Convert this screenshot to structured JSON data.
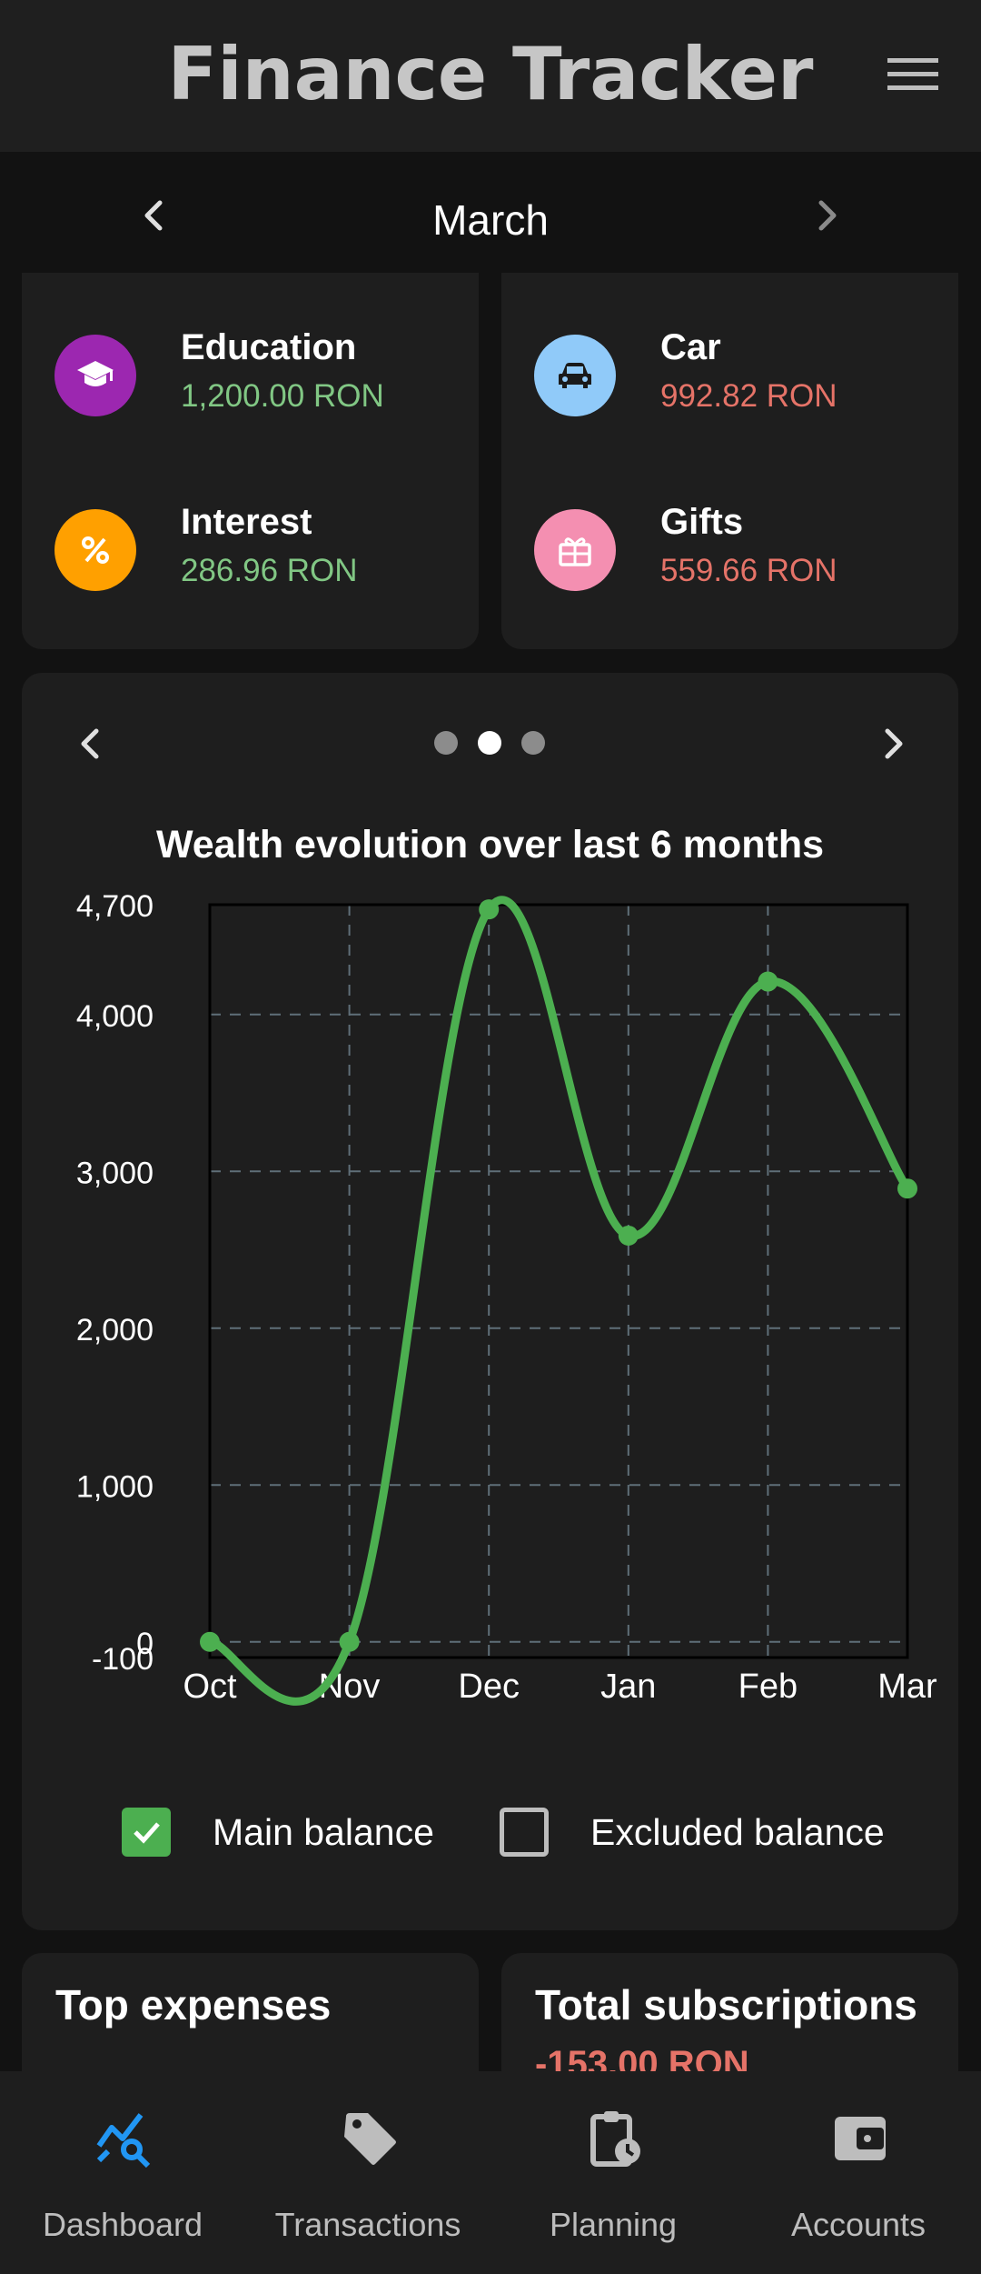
{
  "app": {
    "title": "Finance Tracker"
  },
  "month_selector": {
    "label": "March"
  },
  "categories": [
    {
      "name": "Education",
      "amount": "1,200.00 RON",
      "type": "income",
      "icon": "graduation-cap-icon",
      "color": "#9c27b0"
    },
    {
      "name": "Car",
      "amount": "992.82 RON",
      "type": "expense",
      "icon": "car-icon",
      "color": "#90caf9"
    },
    {
      "name": "Interest",
      "amount": "286.96 RON",
      "type": "income",
      "icon": "percent-icon",
      "color": "#ffa000"
    },
    {
      "name": "Gifts",
      "amount": "559.66 RON",
      "type": "expense",
      "icon": "gift-icon",
      "color": "#f48fb1"
    }
  ],
  "chart_pager": {
    "pages": 3,
    "active_page": 2
  },
  "chart_data": {
    "type": "line",
    "title": "Wealth evolution over last 6 months",
    "categories": [
      "Oct",
      "Nov",
      "Dec",
      "Jan",
      "Feb",
      "Mar"
    ],
    "series": [
      {
        "name": "Main balance",
        "values": [
          0,
          0,
          4670,
          2590,
          4210,
          2890
        ],
        "color": "#4caf50"
      }
    ],
    "ylim": [
      -100,
      4700
    ],
    "yticks": [
      {
        "value": -100,
        "label": "-100"
      },
      {
        "value": 0,
        "label": "0"
      },
      {
        "value": 1000,
        "label": "1,000"
      },
      {
        "value": 2000,
        "label": "2,000"
      },
      {
        "value": 3000,
        "label": "3,000"
      },
      {
        "value": 4000,
        "label": "4,000"
      },
      {
        "value": 4700,
        "label": "4,700"
      }
    ],
    "grid": true,
    "legend": {
      "position": "bottom",
      "items": [
        {
          "label": "Main balance",
          "checked": true
        },
        {
          "label": "Excluded balance",
          "checked": false
        }
      ]
    }
  },
  "top_expenses": {
    "title": "Top expenses"
  },
  "subscriptions": {
    "title": "Total subscriptions",
    "amount": "-153.00 RON"
  },
  "navbar": {
    "items": [
      {
        "label": "Dashboard",
        "icon": "analytics-icon",
        "active": true,
        "color": "#2196f3"
      },
      {
        "label": "Transactions",
        "icon": "tag-icon",
        "active": false
      },
      {
        "label": "Planning",
        "icon": "clipboard-clock-icon",
        "active": false
      },
      {
        "label": "Accounts",
        "icon": "wallet-icon",
        "active": false
      }
    ]
  }
}
